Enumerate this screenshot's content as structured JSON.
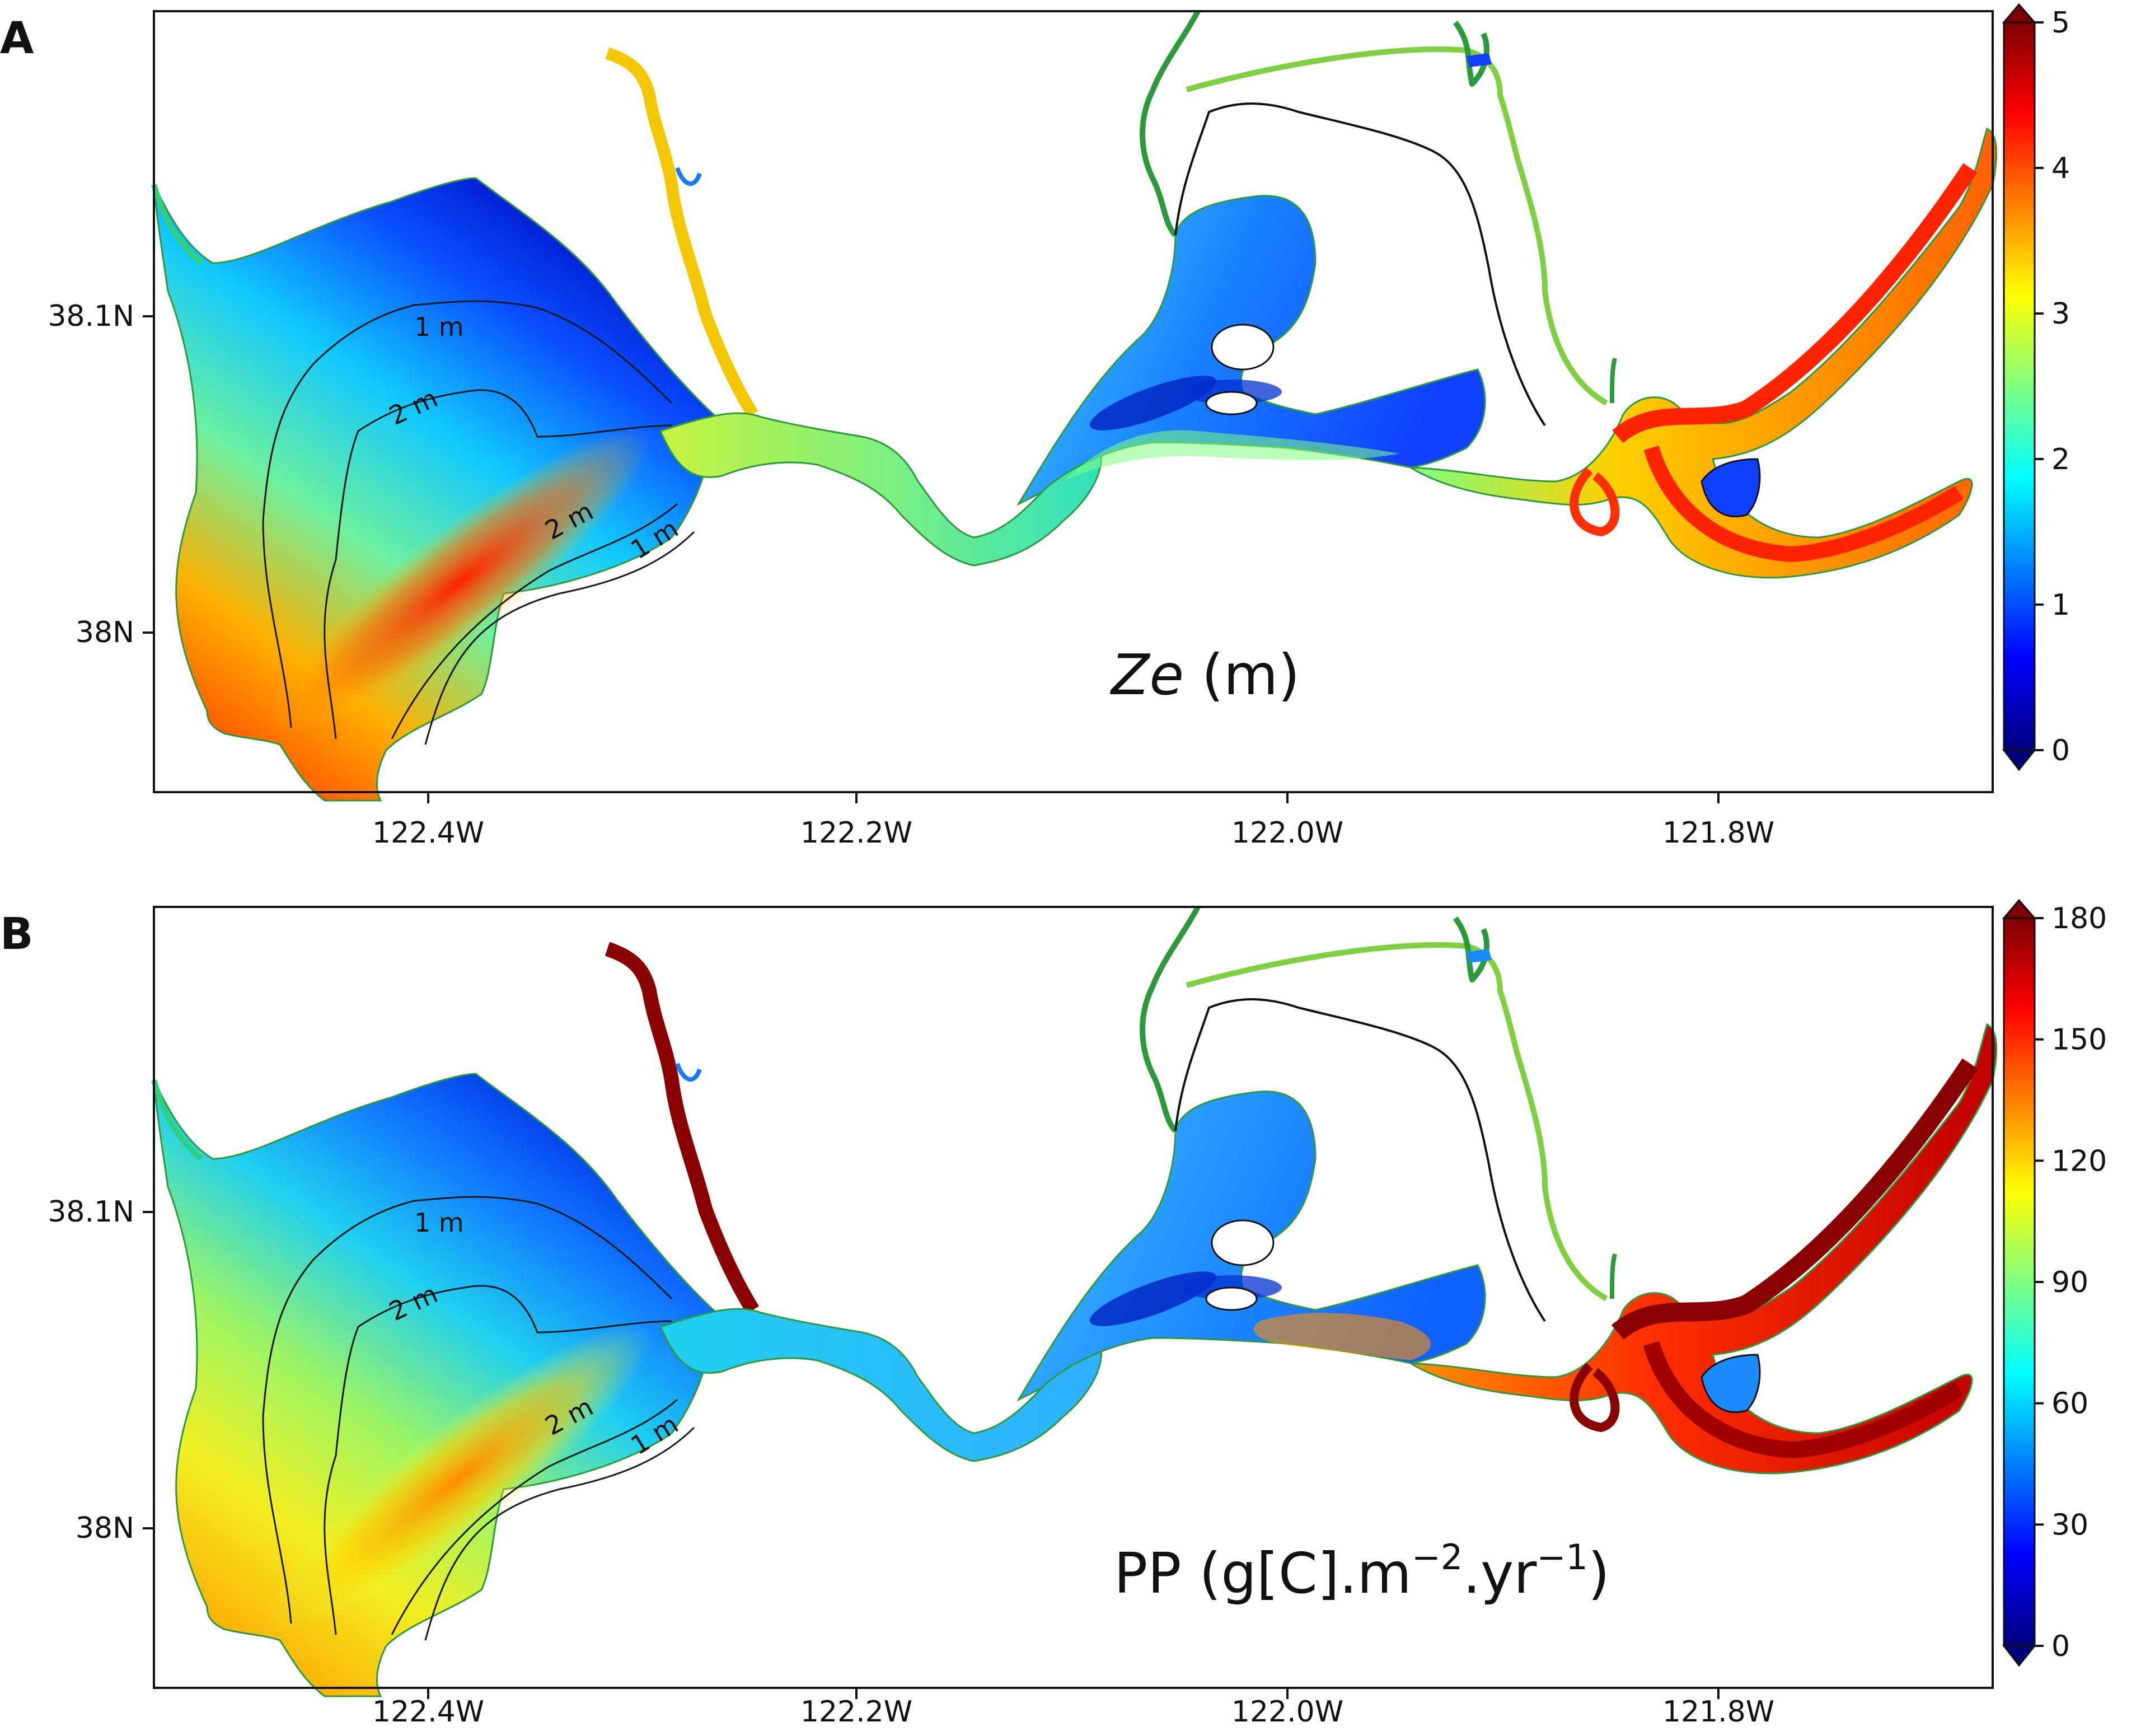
{
  "figure": {
    "panels": [
      {
        "id": "A",
        "panel_letter": "A",
        "label_text": "Ze",
        "label_unit": " (m)",
        "colorbar": {
          "ticks": [
            "0",
            "1",
            "2",
            "3",
            "4",
            "5"
          ],
          "min": 0,
          "max": 5
        },
        "contour_labels": [
          "1 m",
          "2 m",
          "2 m",
          "1 m"
        ],
        "y_ticks": [
          "38.1N",
          "38N"
        ],
        "x_ticks": [
          "122.4W",
          "122.2W",
          "122.0W",
          "121.8W"
        ]
      },
      {
        "id": "B",
        "panel_letter": "B",
        "label_main": "PP (g[C].m",
        "label_sup1": "−2",
        "label_mid": ".yr",
        "label_sup2": "−1",
        "label_end": ")",
        "colorbar": {
          "ticks": [
            "0",
            "30",
            "60",
            "90",
            "120",
            "150",
            "180"
          ],
          "min": 0,
          "max": 180
        },
        "contour_labels": [
          "1 m",
          "2 m",
          "2 m",
          "1 m"
        ],
        "y_ticks": [
          "38.1N",
          "38N"
        ],
        "x_ticks": [
          "122.4W",
          "122.2W",
          "122.0W",
          "121.8W"
        ]
      }
    ]
  },
  "colors": {
    "colormap": [
      "#00007f",
      "#0000ff",
      "#007fff",
      "#00ffff",
      "#7fff7f",
      "#ffff00",
      "#ff7f00",
      "#ff0000",
      "#7f0000"
    ],
    "contour": "#1a1a1a"
  }
}
